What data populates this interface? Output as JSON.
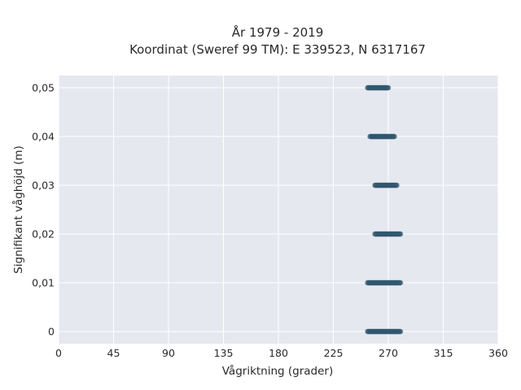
{
  "chart_data": {
    "type": "scatter",
    "title": "År 1979 - 2019",
    "subtitle": "Koordinat (Sweref 99 TM): E 339523, N 6317167",
    "xlabel": "Vågriktning (grader)",
    "ylabel": "Signifikant våghöjd (m)",
    "xlim": [
      0,
      360
    ],
    "ylim": [
      -0.0025,
      0.0525
    ],
    "xticks": [
      0,
      45,
      90,
      135,
      180,
      225,
      270,
      315,
      360
    ],
    "xtick_labels": [
      "0",
      "45",
      "90",
      "135",
      "180",
      "225",
      "270",
      "315",
      "360"
    ],
    "yticks": [
      0,
      0.01,
      0.02,
      0.03,
      0.04,
      0.05
    ],
    "ytick_labels": [
      "0",
      "0,01",
      "0,02",
      "0,03",
      "0,04",
      "0,05"
    ],
    "grid": true,
    "background": "#e6e8f0",
    "grid_color": "#ffffff",
    "marker_color": "#32586f",
    "series": [
      {
        "points": [
          {
            "x_range": [
              253,
              280
            ],
            "y": 0
          },
          {
            "x_range": [
              253,
              280
            ],
            "y": 0.01
          },
          {
            "x_range": [
              259,
              280
            ],
            "y": 0.02
          },
          {
            "x_range": [
              259,
              277
            ],
            "y": 0.03
          },
          {
            "x_range": [
              255,
              275
            ],
            "y": 0.04
          },
          {
            "x_range": [
              253,
              270
            ],
            "y": 0.05
          }
        ]
      }
    ]
  }
}
